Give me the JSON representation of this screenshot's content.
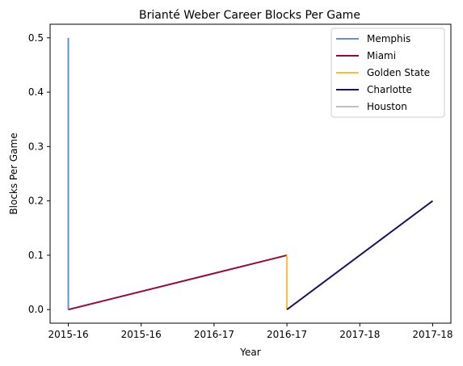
{
  "chart_data": {
    "type": "line",
    "title": "Brianté Weber Career Blocks Per Game",
    "xlabel": "Year",
    "ylabel": "Blocks Per Game",
    "x_ticks": [
      "2015-16",
      "2015-16",
      "2016-17",
      "2016-17",
      "2017-18",
      "2017-18"
    ],
    "y_ticks": [
      "0.0",
      "0.1",
      "0.2",
      "0.3",
      "0.4",
      "0.5"
    ],
    "ylim": [
      -0.025,
      0.525
    ],
    "legend_position": "top-right",
    "grid": false,
    "series": [
      {
        "name": "Memphis",
        "color": "#6a8fc4",
        "points": [
          {
            "x": "2015-16",
            "y": 0.5
          },
          {
            "x": "2015-16",
            "y": 0.0
          }
        ]
      },
      {
        "name": "Miami",
        "color": "#900c3f",
        "points": [
          {
            "x": "2015-16",
            "y": 0.0
          },
          {
            "x": "2016-17",
            "y": 0.1
          }
        ]
      },
      {
        "name": "Golden State",
        "color": "#f9bc3b",
        "points": [
          {
            "x": "2016-17",
            "y": 0.1
          },
          {
            "x": "2016-17",
            "y": 0.0
          }
        ]
      },
      {
        "name": "Charlotte",
        "color": "#1d1160",
        "points": [
          {
            "x": "2016-17",
            "y": 0.0
          },
          {
            "x": "2017-18",
            "y": 0.2
          }
        ]
      },
      {
        "name": "Houston",
        "color": "#c0c0c0",
        "points": []
      }
    ]
  }
}
